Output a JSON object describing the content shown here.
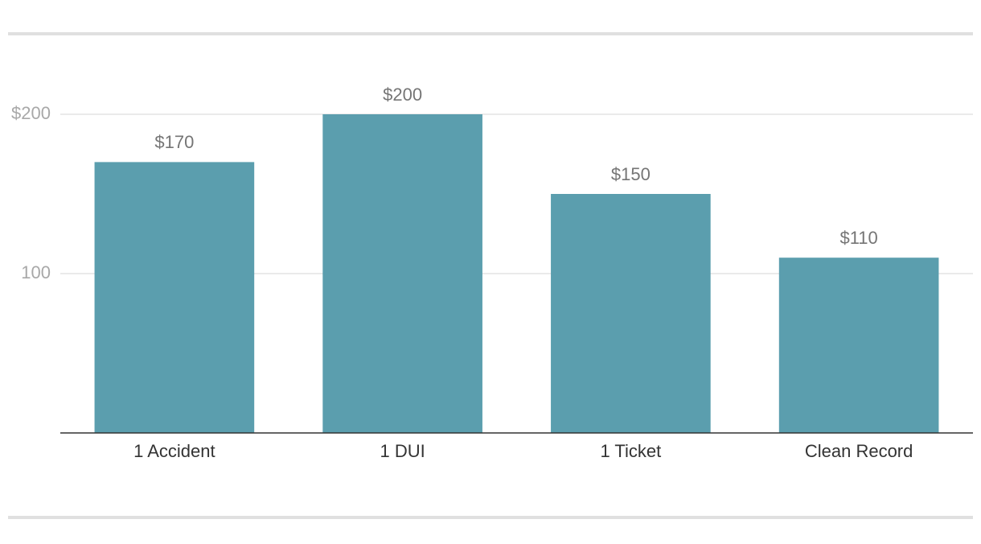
{
  "chart_data": {
    "type": "bar",
    "categories": [
      "1 Accident",
      "1 DUI",
      "1 Ticket",
      "Clean Record"
    ],
    "values": [
      170,
      200,
      150,
      110
    ],
    "value_labels": [
      "$170",
      "$200",
      "$150",
      "$110"
    ],
    "color": "#5b9eae",
    "ylim": [
      0,
      200
    ],
    "yticks": [
      100,
      {
        "value": 200,
        "label": "$200"
      }
    ],
    "grid": true
  }
}
